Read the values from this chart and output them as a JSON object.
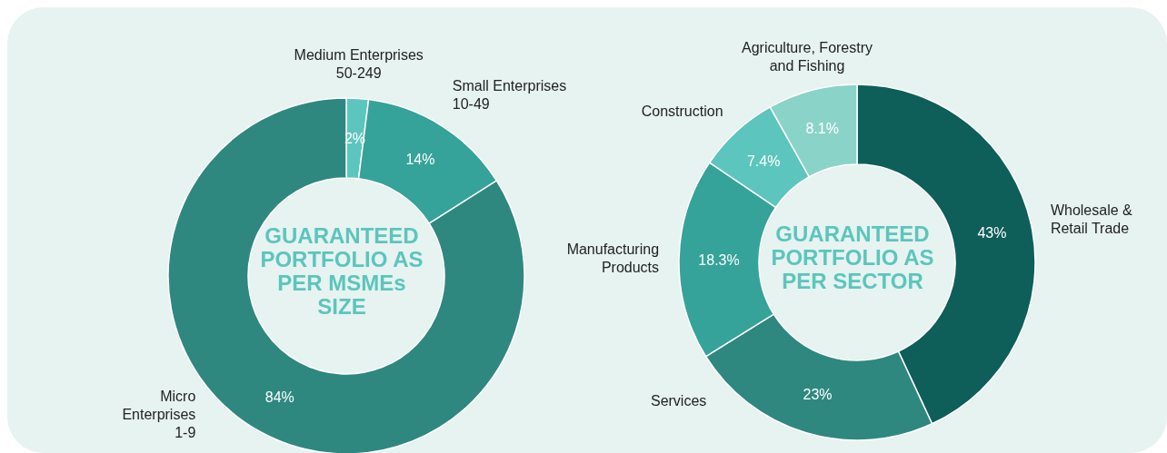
{
  "chart_data": [
    {
      "type": "donut",
      "title": "GUARANTEED PORTFOLIO AS PER MSMEs SIZE",
      "categories": [
        "Medium Enterprises\n50-249",
        "Small Enterprises\n10-49",
        "Micro\nEnterprises\n1-9"
      ],
      "values": [
        2,
        14,
        84
      ],
      "colors": [
        "#5cc5bd",
        "#35a39a",
        "#2e8880"
      ],
      "value_labels": [
        "2%",
        "14%",
        "84%"
      ]
    },
    {
      "type": "donut",
      "title": "GUARANTEED PORTFOLIO AS PER SECTOR",
      "categories": [
        "Wholesale &\nRetail Trade",
        "Services",
        "Manufacturing\nProducts",
        "Construction",
        "Agriculture, Forestry\nand Fishing"
      ],
      "values": [
        43,
        23,
        18.3,
        7.4,
        8.1
      ],
      "colors": [
        "#0e5e5a",
        "#2e8880",
        "#35a39a",
        "#5cc5bd",
        "#8ad3c8"
      ],
      "value_labels": [
        "43%",
        "23%",
        "18.3%",
        "7.4%",
        "8.1%"
      ]
    }
  ]
}
